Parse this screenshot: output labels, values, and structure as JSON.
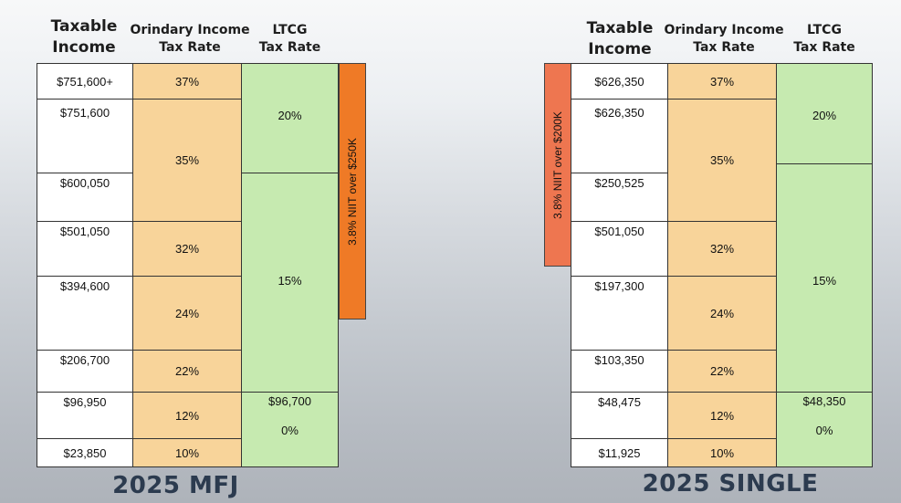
{
  "mfj": {
    "header_income_1": "Taxable",
    "header_income_2": "Income",
    "header_ord_1": "Orindary Income",
    "header_ord_2": "Tax Rate",
    "header_ltcg_1": "LTCG",
    "header_ltcg_2": "Tax Rate",
    "incomes": [
      "$751,600+",
      "$751,600",
      "$600,050",
      "$501,050",
      "$394,600",
      "$206,700",
      "$96,950",
      "$23,850"
    ],
    "ordinary_rates": [
      "37%",
      "35%",
      "32%",
      "24%",
      "22%",
      "12%",
      "10%"
    ],
    "ltcg": {
      "top_rate": "20%",
      "mid_rate": "15%",
      "zero_threshold": "$96,700",
      "zero_rate": "0%"
    },
    "niit": "3.8% NIIT over $250K",
    "niit_color": "#ef7a26",
    "footer": "2025 MFJ"
  },
  "single": {
    "header_income_1": "Taxable",
    "header_income_2": "Income",
    "header_ord_1": "Orindary Income",
    "header_ord_2": "Tax Rate",
    "header_ltcg_1": "LTCG",
    "header_ltcg_2": "Tax Rate",
    "incomes": [
      "$626,350",
      "$626,350",
      "$250,525",
      "$501,050",
      "$197,300",
      "$103,350",
      "$48,475",
      "$11,925"
    ],
    "ordinary_rates": [
      "37%",
      "35%",
      "32%",
      "24%",
      "22%",
      "12%",
      "10%"
    ],
    "ltcg": {
      "top_rate": "20%",
      "mid_rate": "15%",
      "zero_threshold": "$48,350",
      "zero_rate": "0%"
    },
    "niit": "3.8% NIIT over $200K",
    "niit_color": "#ee7650",
    "footer": "2025 SINGLE"
  },
  "colors": {
    "income_bg": "#ffffff",
    "ordinary_bg": "#f8d49a",
    "ltcg_bg": "#c6eab0",
    "footer_text": "#2c3b4f"
  }
}
